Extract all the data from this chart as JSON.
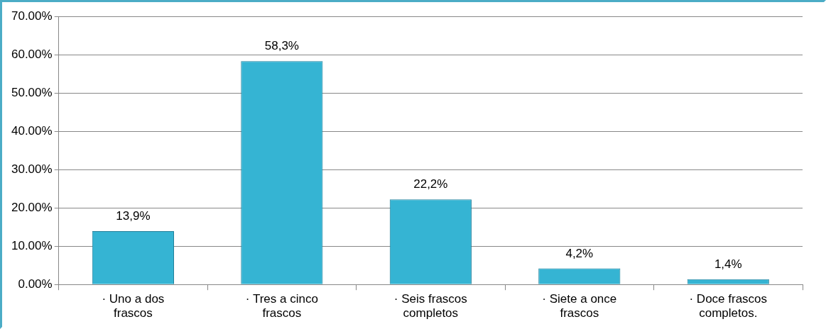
{
  "chart_data": {
    "type": "bar",
    "categories": [
      "· Uno a dos frascos",
      "· Tres a cinco frascos",
      "· Seis frascos completos",
      "· Siete a once frascos",
      "· Doce frascos completos."
    ],
    "values": [
      13.9,
      58.3,
      22.2,
      4.2,
      1.4
    ],
    "value_labels": [
      "13,9%",
      "58,3%",
      "22,2%",
      "4,2%",
      "1,4%"
    ],
    "color": "#35b4d3",
    "ylim": [
      0,
      70
    ],
    "yticks": [
      {
        "value": 0,
        "label": "0.00%"
      },
      {
        "value": 10,
        "label": "10.00%"
      },
      {
        "value": 20,
        "label": "20.00%"
      },
      {
        "value": 30,
        "label": "30.00%"
      },
      {
        "value": 40,
        "label": "40.00%"
      },
      {
        "value": 50,
        "label": "50.00%"
      },
      {
        "value": 60,
        "label": "60.00%"
      },
      {
        "value": 70,
        "label": "70.00%"
      }
    ],
    "grid": "y"
  }
}
